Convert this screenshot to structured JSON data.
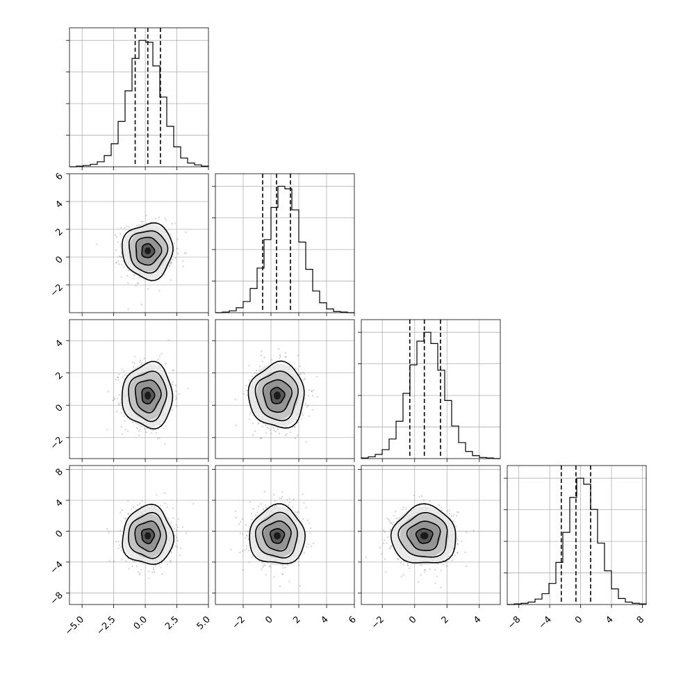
{
  "chart_data": {
    "type": "corner",
    "n_params": 4,
    "params": [
      {
        "index": 0,
        "range": [
          -6,
          5
        ],
        "ticks": [
          -5.0,
          -2.5,
          0.0,
          2.5,
          5.0
        ],
        "tick_labels": [
          "−5.0",
          "−2.5",
          "0.0",
          "2.5",
          "5.0"
        ],
        "mean": 0.2,
        "std": 1.0,
        "quantiles": [
          -0.8,
          0.2,
          1.2
        ]
      },
      {
        "index": 1,
        "range": [
          -4,
          6
        ],
        "ticks": [
          -2,
          0,
          2,
          4,
          6
        ],
        "tick_labels": [
          "−2",
          "0",
          "2",
          "4",
          "6"
        ],
        "mean": 0.45,
        "std": 1.0,
        "quantiles": [
          -0.6,
          0.4,
          1.4
        ]
      },
      {
        "index": 2,
        "range": [
          -3.3,
          5.3
        ],
        "ticks": [
          -2,
          0,
          2,
          4
        ],
        "tick_labels": [
          "−2",
          "0",
          "2",
          "4"
        ],
        "mean": 0.6,
        "std": 1.0,
        "quantiles": [
          -0.3,
          0.6,
          1.6
        ]
      },
      {
        "index": 3,
        "range": [
          -9.5,
          8.5
        ],
        "ticks": [
          -8,
          -4,
          0,
          4,
          8
        ],
        "tick_labels": [
          "−8",
          "−4",
          "0",
          "4",
          "8"
        ],
        "mean": -0.6,
        "std": 1.9,
        "quantiles": [
          -2.5,
          -0.6,
          1.3
        ]
      }
    ],
    "histograms": [
      {
        "param": 0,
        "bin_start": -6.0,
        "bin_width": 0.55,
        "counts": [
          0,
          1,
          2,
          4,
          8,
          18,
          37,
          73,
          122,
          174,
          203,
          200,
          162,
          112,
          65,
          32,
          14,
          6,
          3,
          1
        ]
      },
      {
        "param": 1,
        "bin_start": -4.0,
        "bin_width": 0.5,
        "counts": [
          0,
          1,
          3,
          8,
          18,
          39,
          72,
          118,
          170,
          204,
          200,
          166,
          114,
          70,
          35,
          16,
          6,
          2,
          1,
          0
        ]
      },
      {
        "param": 2,
        "bin_start": -3.3,
        "bin_width": 0.43,
        "counts": [
          1,
          3,
          7,
          15,
          33,
          63,
          110,
          158,
          198,
          213,
          194,
          149,
          98,
          55,
          27,
          12,
          5,
          2,
          1,
          0
        ]
      },
      {
        "param": 3,
        "bin_start": -9.5,
        "bin_width": 0.9,
        "counts": [
          0,
          1,
          2,
          4,
          9,
          18,
          35,
          70,
          120,
          178,
          210,
          200,
          158,
          102,
          56,
          26,
          10,
          4,
          2,
          1
        ]
      }
    ],
    "axis_labels": [],
    "title": "",
    "grid": true,
    "contour_levels_sigma": [
      0.5,
      1.0,
      1.5,
      2.0
    ]
  }
}
